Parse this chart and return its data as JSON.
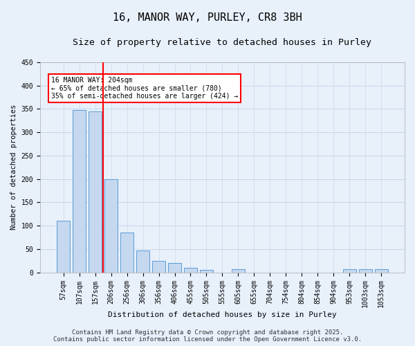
{
  "title": "16, MANOR WAY, PURLEY, CR8 3BH",
  "subtitle": "Size of property relative to detached houses in Purley",
  "xlabel": "Distribution of detached houses by size in Purley",
  "ylabel": "Number of detached properties",
  "categories": [
    "57sqm",
    "107sqm",
    "157sqm",
    "206sqm",
    "256sqm",
    "306sqm",
    "356sqm",
    "406sqm",
    "455sqm",
    "505sqm",
    "555sqm",
    "605sqm",
    "655sqm",
    "704sqm",
    "754sqm",
    "804sqm",
    "854sqm",
    "904sqm",
    "953sqm",
    "1003sqm",
    "1053sqm"
  ],
  "values": [
    110,
    348,
    345,
    200,
    85,
    47,
    25,
    20,
    10,
    5,
    0,
    7,
    0,
    0,
    0,
    0,
    0,
    0,
    7,
    7,
    7
  ],
  "bar_color": "#c5d8f0",
  "bar_edgecolor": "#5b9bd5",
  "grid_color": "#c0d4e8",
  "background_color": "#e8f0fa",
  "red_line_x": 2.5,
  "annotation_text": "16 MANOR WAY: 204sqm\n← 65% of detached houses are smaller (780)\n35% of semi-detached houses are larger (424) →",
  "annotation_box_color": "white",
  "annotation_box_edgecolor": "red",
  "ylim": [
    0,
    450
  ],
  "yticks": [
    0,
    50,
    100,
    150,
    200,
    250,
    300,
    350,
    400,
    450
  ],
  "footer": "Contains HM Land Registry data © Crown copyright and database right 2025.\nContains public sector information licensed under the Open Government Licence v3.0.",
  "title_fontsize": 11,
  "subtitle_fontsize": 9.5,
  "xlabel_fontsize": 8,
  "ylabel_fontsize": 7.5,
  "tick_fontsize": 7,
  "annotation_fontsize": 7,
  "footer_fontsize": 6.5
}
